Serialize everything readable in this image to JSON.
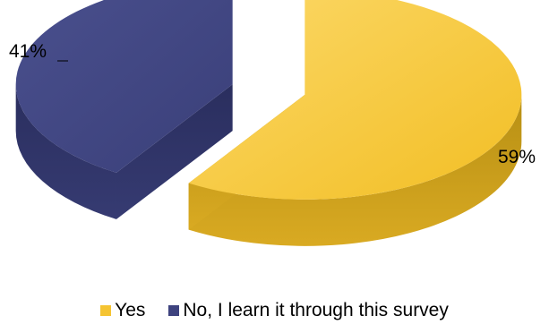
{
  "chart_data": {
    "type": "pie",
    "categories": [
      "Yes",
      "No, I learn it through this survey"
    ],
    "values": [
      59,
      41
    ],
    "labels": [
      "59%",
      "41%"
    ],
    "colors": [
      "#F5C432",
      "#3E437F"
    ],
    "exploded": true,
    "three_d": true,
    "legend_position": "bottom"
  }
}
